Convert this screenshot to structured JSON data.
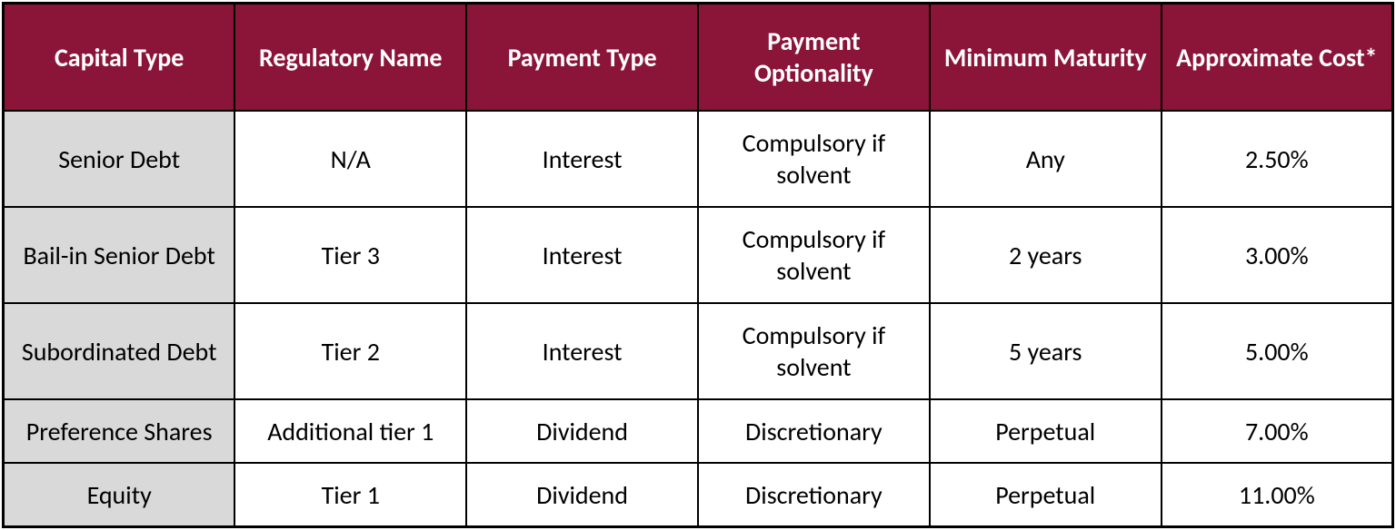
{
  "table": {
    "type": "table",
    "header_bg": "#8a1538",
    "header_fg": "#ffffff",
    "first_col_bg": "#d9d9d9",
    "cell_bg": "#ffffff",
    "border_color": "#000000",
    "font_family": "Calibri",
    "header_fontsize_pt": 22,
    "body_fontsize_pt": 22,
    "columns": [
      "Capital Type",
      "Regulatory Name",
      "Payment Type",
      "Payment Optionality",
      "Minimum Maturity",
      "Approximate Cost*"
    ],
    "rows": [
      [
        "Senior Debt",
        "N/A",
        "Interest",
        "Compulsory if solvent",
        "Any",
        "2.50%"
      ],
      [
        "Bail-in Senior Debt",
        "Tier 3",
        "Interest",
        "Compulsory if solvent",
        "2 years",
        "3.00%"
      ],
      [
        "Subordinated Debt",
        "Tier 2",
        "Interest",
        "Compulsory if solvent",
        "5 years",
        "5.00%"
      ],
      [
        "Preference Shares",
        "Additional tier 1",
        "Dividend",
        "Discretionary",
        "Perpetual",
        "7.00%"
      ],
      [
        "Equity",
        "Tier 1",
        "Dividend",
        "Discretionary",
        "Perpetual",
        "11.00%"
      ]
    ],
    "row_heights": [
      "tall",
      "tall",
      "tall",
      "short",
      "short"
    ]
  }
}
